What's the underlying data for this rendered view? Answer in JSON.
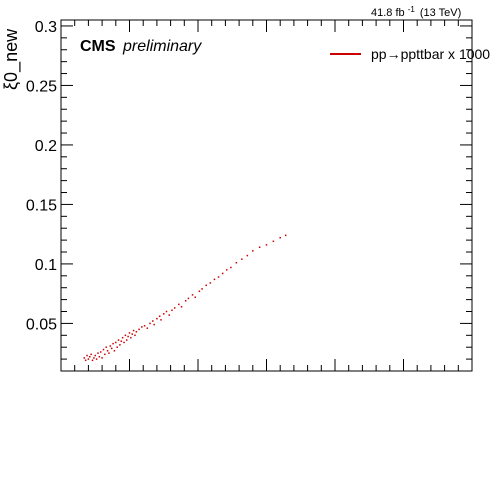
{
  "chart_data": {
    "type": "scatter",
    "ylabel": "ξ0_new",
    "xlabel": "",
    "ylim": [
      0.01,
      0.305
    ],
    "xlim": [
      0,
      0.3
    ],
    "yticks": [
      "0.05",
      "0.1",
      "0.15",
      "0.2",
      "0.25",
      "0.3"
    ],
    "xtick_labels_shown": false,
    "header": "41.8 fb",
    "header_sup": "-1",
    "header_energy": "(13 TeV)",
    "experiment": "CMS",
    "experiment_status": "preliminary",
    "legend_position": "top-right",
    "series": [
      {
        "name": "pp→ppttbar x 1000",
        "color": "#cc0000",
        "points": [
          [
            0.017,
            0.021
          ],
          [
            0.018,
            0.019
          ],
          [
            0.019,
            0.023
          ],
          [
            0.02,
            0.02
          ],
          [
            0.021,
            0.022
          ],
          [
            0.022,
            0.024
          ],
          [
            0.023,
            0.019
          ],
          [
            0.024,
            0.021
          ],
          [
            0.025,
            0.023
          ],
          [
            0.026,
            0.02
          ],
          [
            0.027,
            0.025
          ],
          [
            0.028,
            0.022
          ],
          [
            0.029,
            0.026
          ],
          [
            0.03,
            0.021
          ],
          [
            0.031,
            0.028
          ],
          [
            0.032,
            0.024
          ],
          [
            0.033,
            0.03
          ],
          [
            0.034,
            0.027
          ],
          [
            0.035,
            0.025
          ],
          [
            0.036,
            0.031
          ],
          [
            0.037,
            0.029
          ],
          [
            0.038,
            0.033
          ],
          [
            0.039,
            0.027
          ],
          [
            0.04,
            0.034
          ],
          [
            0.041,
            0.03
          ],
          [
            0.042,
            0.036
          ],
          [
            0.043,
            0.032
          ],
          [
            0.044,
            0.035
          ],
          [
            0.045,
            0.038
          ],
          [
            0.046,
            0.034
          ],
          [
            0.047,
            0.04
          ],
          [
            0.048,
            0.036
          ],
          [
            0.049,
            0.039
          ],
          [
            0.05,
            0.042
          ],
          [
            0.051,
            0.038
          ],
          [
            0.052,
            0.041
          ],
          [
            0.053,
            0.044
          ],
          [
            0.054,
            0.04
          ],
          [
            0.055,
            0.043
          ],
          [
            0.057,
            0.045
          ],
          [
            0.059,
            0.047
          ],
          [
            0.061,
            0.048
          ],
          [
            0.063,
            0.046
          ],
          [
            0.065,
            0.05
          ],
          [
            0.067,
            0.052
          ],
          [
            0.068,
            0.049
          ],
          [
            0.07,
            0.054
          ],
          [
            0.072,
            0.056
          ],
          [
            0.073,
            0.053
          ],
          [
            0.075,
            0.058
          ],
          [
            0.077,
            0.06
          ],
          [
            0.079,
            0.057
          ],
          [
            0.081,
            0.061
          ],
          [
            0.083,
            0.063
          ],
          [
            0.086,
            0.066
          ],
          [
            0.088,
            0.064
          ],
          [
            0.091,
            0.069
          ],
          [
            0.093,
            0.071
          ],
          [
            0.096,
            0.074
          ],
          [
            0.098,
            0.072
          ],
          [
            0.101,
            0.077
          ],
          [
            0.103,
            0.079
          ],
          [
            0.106,
            0.082
          ],
          [
            0.109,
            0.084
          ],
          [
            0.112,
            0.087
          ],
          [
            0.115,
            0.089
          ],
          [
            0.118,
            0.092
          ],
          [
            0.121,
            0.095
          ],
          [
            0.124,
            0.097
          ],
          [
            0.128,
            0.101
          ],
          [
            0.132,
            0.104
          ],
          [
            0.136,
            0.107
          ],
          [
            0.14,
            0.111
          ],
          [
            0.145,
            0.114
          ],
          [
            0.15,
            0.116
          ],
          [
            0.155,
            0.119
          ],
          [
            0.16,
            0.122
          ],
          [
            0.164,
            0.124
          ]
        ]
      }
    ]
  }
}
